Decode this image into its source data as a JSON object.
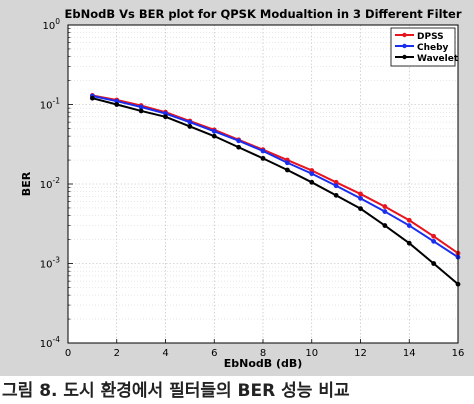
{
  "caption": "그림 8. 도시 환경에서 필터들의 BER 성능 비교",
  "chart_data": {
    "type": "line",
    "title": "EbNodB Vs BER plot for QPSK Modualtion in 3 Different Filter",
    "xlabel": "EbNodB (dB)",
    "ylabel": "BER",
    "xlim": [
      0,
      16
    ],
    "ylim": [
      0.0001,
      1
    ],
    "yscale": "log",
    "grid": true,
    "legend_position": "top-right",
    "x_ticks": [
      0,
      2,
      4,
      6,
      8,
      10,
      12,
      14,
      16
    ],
    "y_ticks": [
      {
        "value": 1,
        "mant": "10",
        "exp": "0"
      },
      {
        "value": 0.1,
        "mant": "10",
        "exp": "-1"
      },
      {
        "value": 0.01,
        "mant": "10",
        "exp": "-2"
      },
      {
        "value": 0.001,
        "mant": "10",
        "exp": "-3"
      },
      {
        "value": 0.0001,
        "mant": "10",
        "exp": "-4"
      }
    ],
    "x": [
      1,
      2,
      3,
      4,
      5,
      6,
      7,
      8,
      9,
      10,
      11,
      12,
      13,
      14,
      15,
      16
    ],
    "series": [
      {
        "name": "DPSS",
        "color": "#e8141e",
        "values": [
          0.13,
          0.114,
          0.097,
          0.08,
          0.062,
          0.048,
          0.036,
          0.027,
          0.02,
          0.0148,
          0.0105,
          0.0075,
          0.0052,
          0.0035,
          0.0022,
          0.00135
        ]
      },
      {
        "name": "Cheby",
        "color": "#1a2ef0",
        "values": [
          0.128,
          0.11,
          0.093,
          0.077,
          0.06,
          0.046,
          0.035,
          0.026,
          0.0185,
          0.0135,
          0.0095,
          0.0066,
          0.0045,
          0.003,
          0.0019,
          0.0012
        ]
      },
      {
        "name": "Wavelet",
        "color": "#000000",
        "values": [
          0.12,
          0.1,
          0.083,
          0.07,
          0.053,
          0.04,
          0.029,
          0.021,
          0.015,
          0.0105,
          0.0072,
          0.0049,
          0.003,
          0.0018,
          0.001,
          0.00055
        ]
      }
    ]
  }
}
